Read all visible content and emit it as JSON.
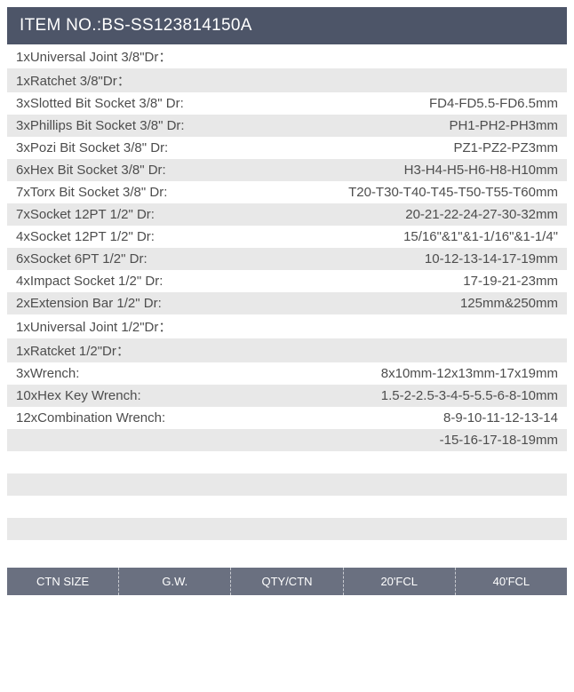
{
  "header": {
    "title": "ITEM NO.:BS-SS123814150A"
  },
  "colors": {
    "header_bg": "#4d5568",
    "header_text": "#ffffff",
    "row_even_bg": "#ffffff",
    "row_odd_bg": "#e8e8e8",
    "text_color": "#4d4d4d",
    "footer_bg": "#6a7080",
    "footer_text": "#ffffff"
  },
  "typography": {
    "header_fontsize": 19,
    "row_fontsize": 15,
    "footer_fontsize": 13
  },
  "specs": [
    {
      "label": "1xUniversal Joint 3/8\"Dr：",
      "value": ""
    },
    {
      "label": "1xRatchet 3/8\"Dr：",
      "value": ""
    },
    {
      "label": "3xSlotted Bit Socket 3/8\" Dr:",
      "value": "FD4-FD5.5-FD6.5mm"
    },
    {
      "label": "3xPhillips Bit Socket 3/8\" Dr:",
      "value": "PH1-PH2-PH3mm"
    },
    {
      "label": "3xPozi Bit Socket 3/8\" Dr:",
      "value": "PZ1-PZ2-PZ3mm"
    },
    {
      "label": "6xHex Bit Socket 3/8\" Dr:",
      "value": "H3-H4-H5-H6-H8-H10mm"
    },
    {
      "label": "7xTorx Bit Socket 3/8\" Dr:",
      "value": "T20-T30-T40-T45-T50-T55-T60mm"
    },
    {
      "label": "7xSocket 12PT 1/2\" Dr:",
      "value": "20-21-22-24-27-30-32mm"
    },
    {
      "label": "4xSocket 12PT 1/2\" Dr:",
      "value": "15/16\"&1\"&1-1/16\"&1-1/4\""
    },
    {
      "label": "6xSocket 6PT 1/2\" Dr:",
      "value": "10-12-13-14-17-19mm"
    },
    {
      "label": "4xImpact Socket 1/2\" Dr:",
      "value": "17-19-21-23mm"
    },
    {
      "label": "2xExtension Bar 1/2\" Dr:",
      "value": "125mm&250mm"
    },
    {
      "label": "1xUniversal Joint 1/2\"Dr：",
      "value": ""
    },
    {
      "label": "1xRatcket 1/2\"Dr：",
      "value": ""
    },
    {
      "label": "3xWrench:",
      "value": "8x10mm-12x13mm-17x19mm"
    },
    {
      "label": "10xHex Key Wrench:",
      "value": "1.5-2-2.5-3-4-5-5.5-6-8-10mm"
    },
    {
      "label": "12xCombination Wrench:",
      "value": "8-9-10-11-12-13-14"
    },
    {
      "label": "",
      "value": "-15-16-17-18-19mm"
    },
    {
      "label": "",
      "value": ""
    },
    {
      "label": "",
      "value": ""
    },
    {
      "label": "",
      "value": ""
    },
    {
      "label": "",
      "value": ""
    },
    {
      "label": "",
      "value": ""
    }
  ],
  "footer": {
    "columns": [
      "CTN SIZE",
      "G.W.",
      "QTY/CTN",
      "20'FCL",
      "40'FCL"
    ]
  }
}
